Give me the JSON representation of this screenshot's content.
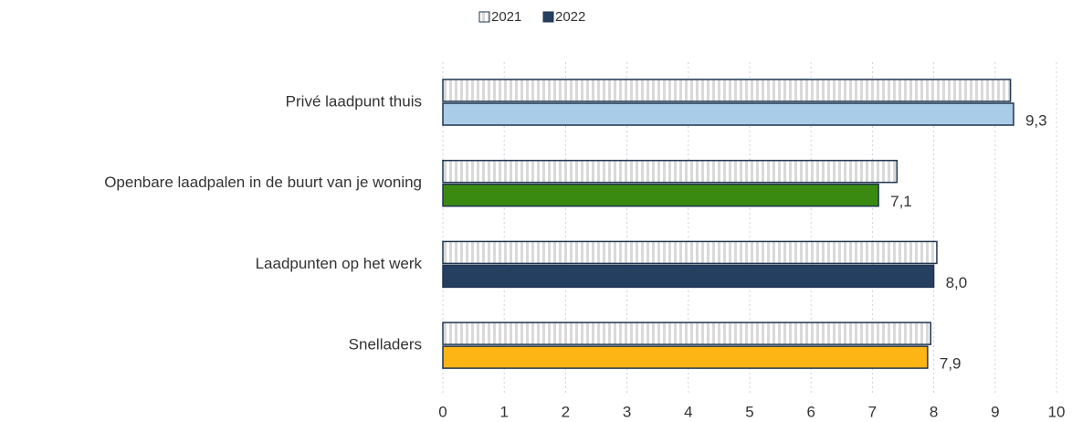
{
  "chart_data": {
    "type": "bar",
    "orientation": "horizontal",
    "categories": [
      "Privé laadpunt thuis",
      "Openbare laadpalen in de buurt van je woning",
      "Laadpunten op het werk",
      "Snelladers"
    ],
    "series": [
      {
        "name": "2021",
        "color": "#d9d9d9",
        "pattern": "vertical-stripes",
        "values": [
          9.25,
          7.4,
          8.05,
          7.95
        ]
      },
      {
        "name": "2022",
        "color": "#253f60",
        "colors": [
          "#a9cce8",
          "#3a8a12",
          "#253f60",
          "#fdb515"
        ],
        "values": [
          9.3,
          7.1,
          8.0,
          7.9
        ],
        "value_labels": [
          "9,3",
          "7,1",
          "8,0",
          "7,9"
        ]
      }
    ],
    "xlim": [
      0,
      10
    ],
    "xticks": [
      0,
      1,
      2,
      3,
      4,
      5,
      6,
      7,
      8,
      9,
      10
    ],
    "grid": true,
    "legend": "top"
  }
}
